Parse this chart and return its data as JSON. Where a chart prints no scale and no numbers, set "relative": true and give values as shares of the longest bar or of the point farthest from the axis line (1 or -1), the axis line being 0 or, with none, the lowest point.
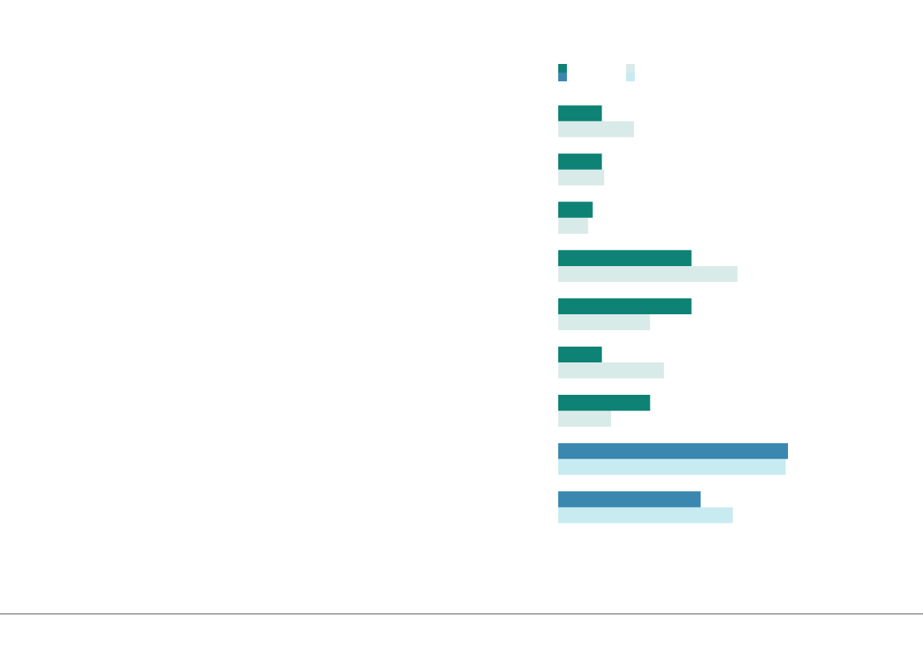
{
  "chart_data": {
    "type": "bar",
    "orientation": "horizontal",
    "relative": true,
    "categories": [
      null,
      null,
      null,
      null,
      null,
      null,
      null,
      null,
      null
    ],
    "series": [
      {
        "colors": [
          "#0e8275",
          "#0e8275",
          "#0e8275",
          "#0e8275",
          "#0e8275",
          "#0e8275",
          "#0e8275",
          "#3a87b0",
          "#3a87b0"
        ],
        "values": [
          0.19,
          0.19,
          0.15,
          0.58,
          0.58,
          0.19,
          0.4,
          1,
          0.62
        ]
      },
      {
        "colors": [
          "#d9ebe9",
          "#d9ebe9",
          "#d9ebe9",
          "#d9ebe9",
          "#d9ebe9",
          "#d9ebe9",
          "#d9ebe9",
          "#c7ebf1",
          "#c7ebf1"
        ],
        "values": [
          0.33,
          0.2,
          0.13,
          0.78,
          0.4,
          0.46,
          0.23,
          0.99,
          0.76
        ]
      }
    ]
  }
}
